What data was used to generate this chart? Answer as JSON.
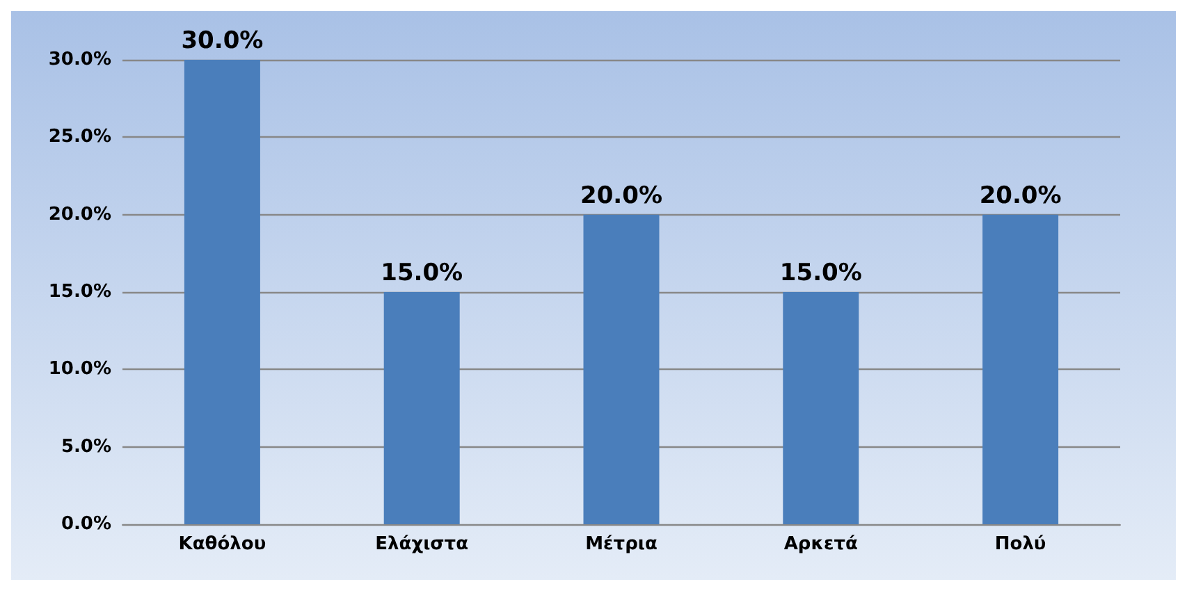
{
  "chart_data": {
    "type": "bar",
    "categories": [
      "Καθόλου",
      "Ελάχιστα",
      "Μέτρια",
      "Αρκετά",
      "Πολύ"
    ],
    "values": [
      30,
      15,
      20,
      15,
      20
    ],
    "color": "#4a7ebb",
    "value_labels": [
      "30.0%",
      "15.0%",
      "20.0%",
      "15.0%",
      "20.0%"
    ],
    "ylim": [
      0,
      30
    ],
    "yticks": [
      {
        "value": 0,
        "label": "0.0%"
      },
      {
        "value": 5,
        "label": "5.0%"
      },
      {
        "value": 10,
        "label": "10.0%"
      },
      {
        "value": 15,
        "label": "15.0%"
      },
      {
        "value": 20,
        "label": "20.0%"
      },
      {
        "value": 25,
        "label": "25.0%"
      },
      {
        "value": 30,
        "label": "30.0%"
      }
    ],
    "grid": true
  }
}
